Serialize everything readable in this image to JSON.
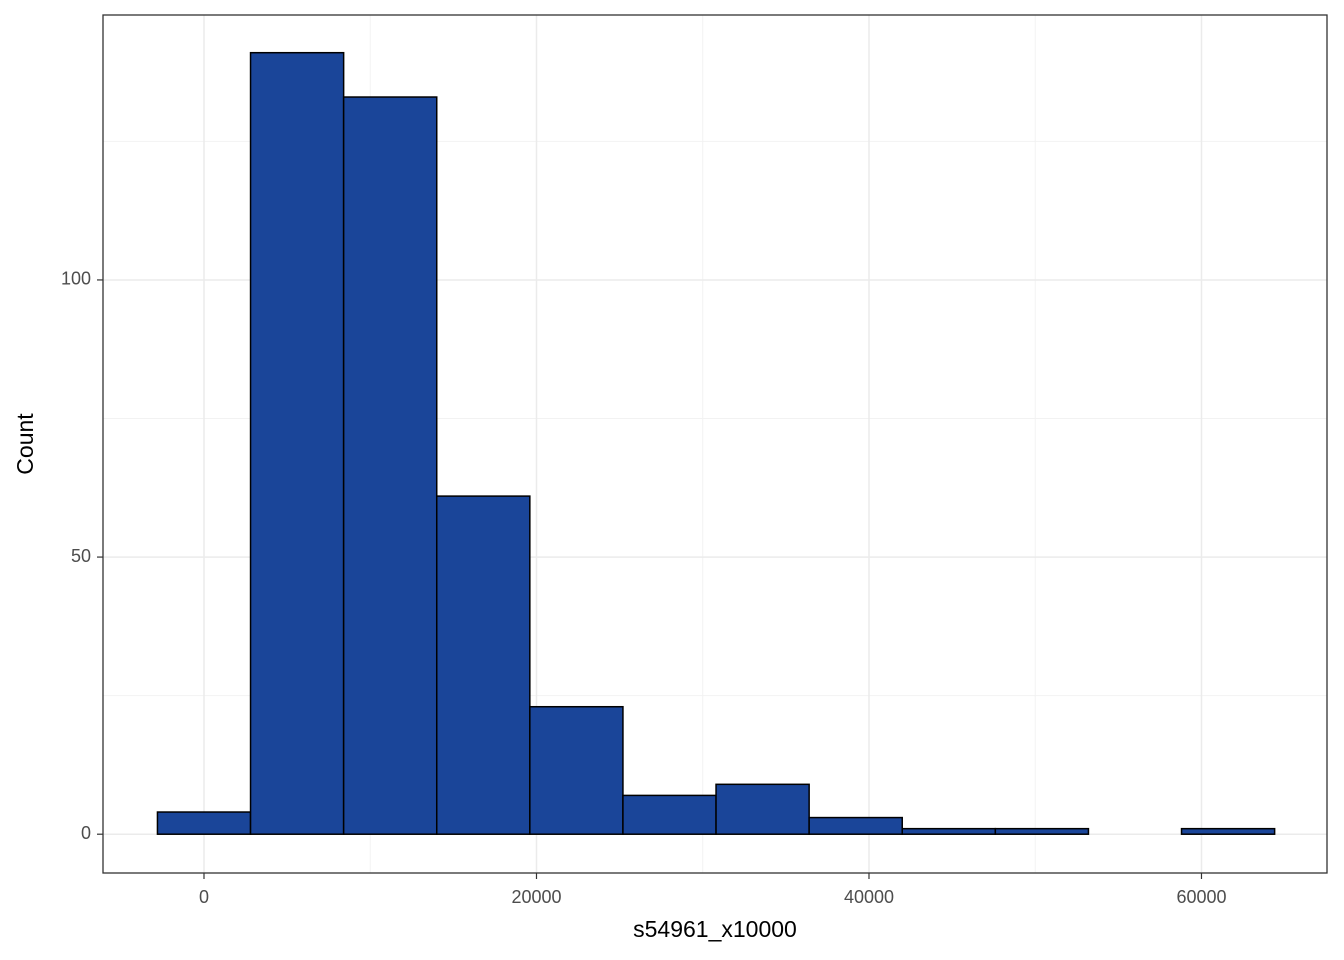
{
  "chart_data": {
    "type": "histogram",
    "x_label": "s54961_x10000",
    "y_label": "Count",
    "bins": [
      -2800,
      2800,
      8400,
      14000,
      19600,
      25200,
      30800,
      36400,
      42000,
      47600,
      53200,
      58800,
      64400
    ],
    "values": [
      4,
      141,
      133,
      61,
      23,
      7,
      9,
      3,
      1,
      1,
      0,
      1
    ],
    "color": "#1a4599",
    "edge_color": "#000000",
    "xlim": [
      -6075,
      67550
    ],
    "ylim": [
      -7,
      147.8
    ],
    "xticks": [
      0,
      20000,
      40000,
      60000
    ],
    "yticks": [
      0,
      50,
      100
    ],
    "xminor": [
      10000,
      30000,
      50000
    ],
    "yminor": [
      25,
      75,
      125
    ],
    "grid": true
  }
}
